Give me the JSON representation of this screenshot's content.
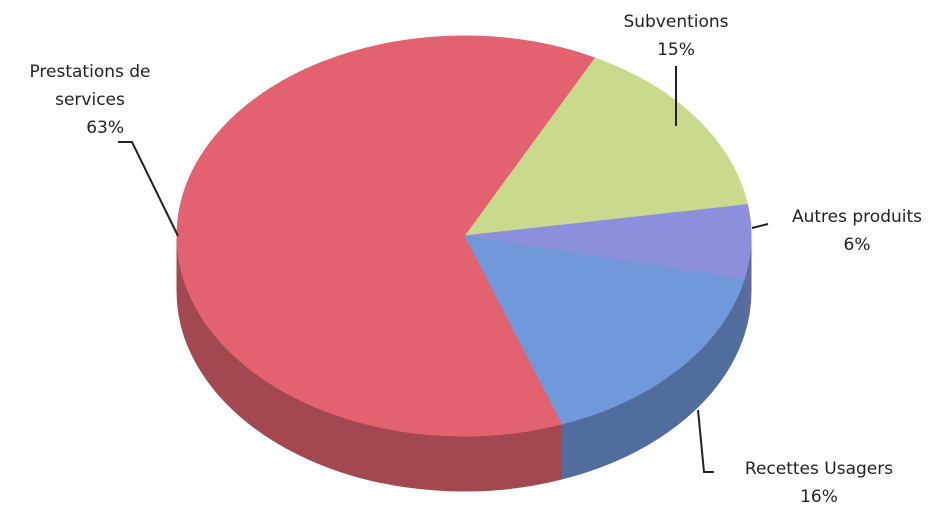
{
  "chart_data": {
    "type": "pie",
    "categories": [
      "Subventions",
      "Autres produits",
      "Recettes Usagers",
      "Prestations de services"
    ],
    "values": [
      15,
      6,
      16,
      63
    ],
    "value_labels": [
      "15%",
      "6%",
      "16%",
      "63%"
    ],
    "colors": [
      "#c9da8f",
      "#8c90dc",
      "#7098da",
      "#e2626f"
    ]
  }
}
